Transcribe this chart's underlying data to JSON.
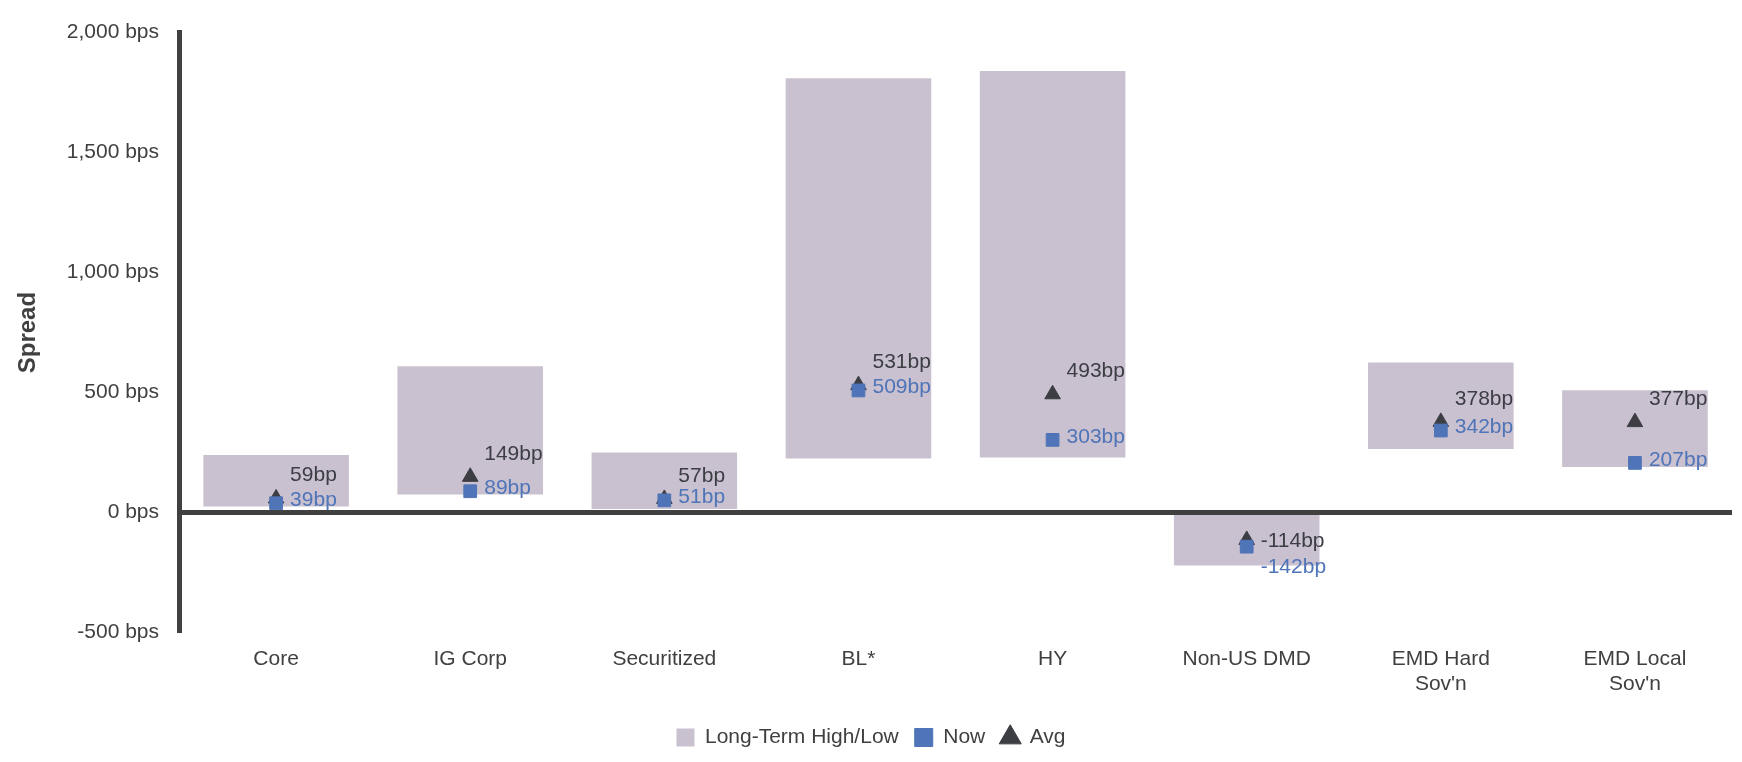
{
  "chart_data": {
    "type": "bar",
    "ylabel": "Spread",
    "categories": [
      "Core",
      "IG Corp",
      "Securitized",
      "BL*",
      "HY",
      "Non-US DMD",
      "EMD Hard\nSov'n",
      "EMD Local\nSov'n"
    ],
    "ylim": [
      -500,
      2000
    ],
    "yticks": [
      {
        "value": -500,
        "label": "-500 bps"
      },
      {
        "value": 0,
        "label": "0 bps"
      },
      {
        "value": 500,
        "label": "500 bps"
      },
      {
        "value": 1000,
        "label": "1,000 bps"
      },
      {
        "value": 1500,
        "label": "1,500 bps"
      },
      {
        "value": 2000,
        "label": "2,000 bps"
      }
    ],
    "grid": false,
    "legend": "bottom",
    "ref_lines": [
      {
        "axis": "y",
        "value": 0,
        "color": "#404040",
        "line_style": "solid"
      }
    ],
    "series": [
      {
        "name": "Long-Term High/Low",
        "type": "bar",
        "color": "#c9c1cf",
        "base": [
          25,
          75,
          15,
          225,
          230,
          -220,
          265,
          190
        ],
        "values": [
          215,
          535,
          235,
          1585,
          1610,
          220,
          360,
          320
        ]
      },
      {
        "name": "Now",
        "type": "scatter",
        "marker": "square",
        "color": "#4f74b8",
        "x": [
          "Core",
          "IG Corp",
          "Securitized",
          "BL*",
          "HY",
          "Non-US DMD",
          "EMD Hard\nSov'n",
          "EMD Local\nSov'n"
        ],
        "values": [
          39,
          89,
          51,
          509,
          303,
          -142,
          342,
          207
        ],
        "value_labels": [
          "39bp",
          "89bp",
          "51bp",
          "509bp",
          "303bp",
          "-142bp",
          "342bp",
          "207bp"
        ]
      },
      {
        "name": "Avg",
        "type": "scatter",
        "marker": "triangle",
        "color": "#3d3d44",
        "x": [
          "Core",
          "IG Corp",
          "Securitized",
          "BL*",
          "HY",
          "Non-US DMD",
          "EMD Hard\nSov'n",
          "EMD Local\nSov'n"
        ],
        "values": [
          59,
          149,
          57,
          531,
          493,
          -114,
          378,
          377
        ],
        "value_labels": [
          "59bp",
          "149bp",
          "57bp",
          "531bp",
          "493bp",
          "-114bp",
          "378bp",
          "377bp"
        ]
      }
    ]
  }
}
